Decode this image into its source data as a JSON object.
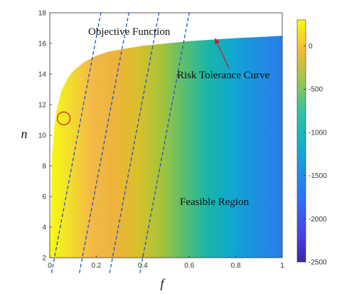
{
  "chart_data": {
    "type": "heatmap",
    "title": "",
    "xlabel": "f",
    "ylabel": "n",
    "xlim": [
      0,
      1
    ],
    "ylim": [
      2,
      18
    ],
    "x_ticks": [
      0,
      0.2,
      0.4,
      0.6,
      0.8,
      1
    ],
    "x_tick_labels": [
      "0",
      "0.2",
      "0.4",
      "0.6",
      "0.8",
      "1"
    ],
    "y_ticks": [
      2,
      4,
      6,
      8,
      10,
      12,
      14,
      16,
      18
    ],
    "y_tick_labels": [
      "2",
      "4",
      "6",
      "8",
      "10",
      "12",
      "14",
      "16",
      "18"
    ],
    "colorbar": {
      "range": [
        -2500,
        300
      ],
      "ticks": [
        0,
        -500,
        -1000,
        -1500,
        -2000,
        -2500
      ],
      "tick_labels": [
        "0",
        "-500",
        "-1000",
        "-1500",
        "-2000",
        "-2500"
      ],
      "colormap": "parula"
    },
    "risk_tolerance_curve": {
      "f": [
        0,
        0.01,
        0.02,
        0.03,
        0.05,
        0.08,
        0.1,
        0.15,
        0.2,
        0.25,
        0.3,
        0.4,
        0.5,
        0.6,
        0.7,
        0.8,
        0.9,
        1.0
      ],
      "n": [
        2,
        8.7,
        10.6,
        11.7,
        12.9,
        13.8,
        14.2,
        14.8,
        15.2,
        15.45,
        15.6,
        15.85,
        16.0,
        16.15,
        16.25,
        16.35,
        16.42,
        16.5
      ]
    },
    "objective_function_lines": {
      "n_range": [
        1,
        18
      ],
      "f_at_n2": [
        0.02,
        0.14,
        0.27,
        0.4
      ],
      "slope_dn_df": 80
    },
    "optimal_point": {
      "f": 0.06,
      "n": 11.1
    },
    "annotations": {
      "objective_function": "Objective Function",
      "risk_tolerance_curve": "Risk Tolerance Curve",
      "feasible_region": "Feasible Region"
    },
    "grid": false,
    "colors": {
      "objective_lines": "#2255cc",
      "optimal_marker": "#d62a2a",
      "arrow": "#c0282d",
      "axes": "#333333"
    }
  }
}
